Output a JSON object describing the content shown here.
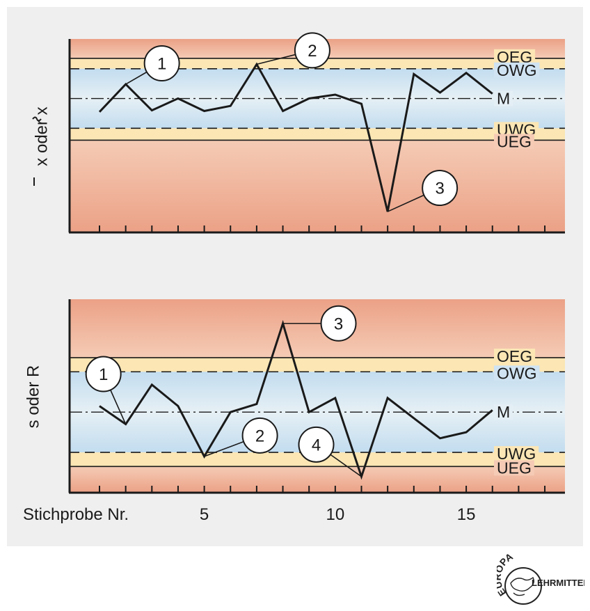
{
  "chart_data": [
    {
      "type": "line",
      "ylabel_main": "x oder x",
      "xlabel": "",
      "x": [
        1,
        2,
        3,
        4,
        5,
        6,
        7,
        8,
        9,
        10,
        11,
        12,
        13,
        14,
        15,
        16
      ],
      "values": [
        1.55,
        2.48,
        1.6,
        2.0,
        1.58,
        1.75,
        3.15,
        1.58,
        2.0,
        2.13,
        1.82,
        -1.8,
        2.82,
        2.2,
        2.86,
        2.16
      ],
      "center_line": 2.0,
      "limits": [
        {
          "name": "OEG",
          "value": 3.35
        },
        {
          "name": "OWG",
          "value": 3.0
        },
        {
          "name": "M",
          "value": 2.0
        },
        {
          "name": "UWG",
          "value": 1.0
        },
        {
          "name": "UEG",
          "value": 0.6
        }
      ],
      "callouts": [
        {
          "label": "1",
          "x": 2
        },
        {
          "label": "2",
          "x": 7
        },
        {
          "label": "3",
          "x": 12
        }
      ]
    },
    {
      "type": "line",
      "ylabel_main": "s oder R",
      "xlabel": "Stichprobe Nr.",
      "x": [
        1,
        2,
        3,
        4,
        5,
        6,
        7,
        8,
        9,
        10,
        11,
        12,
        13,
        14,
        15,
        16
      ],
      "values": [
        2.15,
        1.7,
        2.68,
        2.15,
        0.9,
        2.0,
        2.2,
        4.2,
        2.0,
        2.35,
        0.4,
        2.35,
        1.85,
        1.35,
        1.5,
        2.05
      ],
      "center_line": 2.0,
      "limits": [
        {
          "name": "OEG",
          "value": 3.35
        },
        {
          "name": "OWG",
          "value": 3.0
        },
        {
          "name": "M",
          "value": 2.0
        },
        {
          "name": "UWG",
          "value": 1.0
        },
        {
          "name": "UEG",
          "value": 0.65
        }
      ],
      "callouts": [
        {
          "label": "1",
          "x": 2
        },
        {
          "label": "2",
          "x": 5
        },
        {
          "label": "3",
          "x": 8
        },
        {
          "label": "4",
          "x": 11
        }
      ],
      "x_ticks": [
        {
          "value": 5,
          "label": "5"
        },
        {
          "value": 10,
          "label": "10"
        },
        {
          "value": 15,
          "label": "15"
        }
      ]
    }
  ],
  "logo": {
    "top_text": "EUROPA",
    "bottom_text": "LEHRMITTEL"
  },
  "colors": {
    "panel_bg": "#efefef",
    "red": "#e9a48c",
    "yellow": "#fbe7b6",
    "blue": "#c7e0f1",
    "line": "#1a1a1a"
  }
}
